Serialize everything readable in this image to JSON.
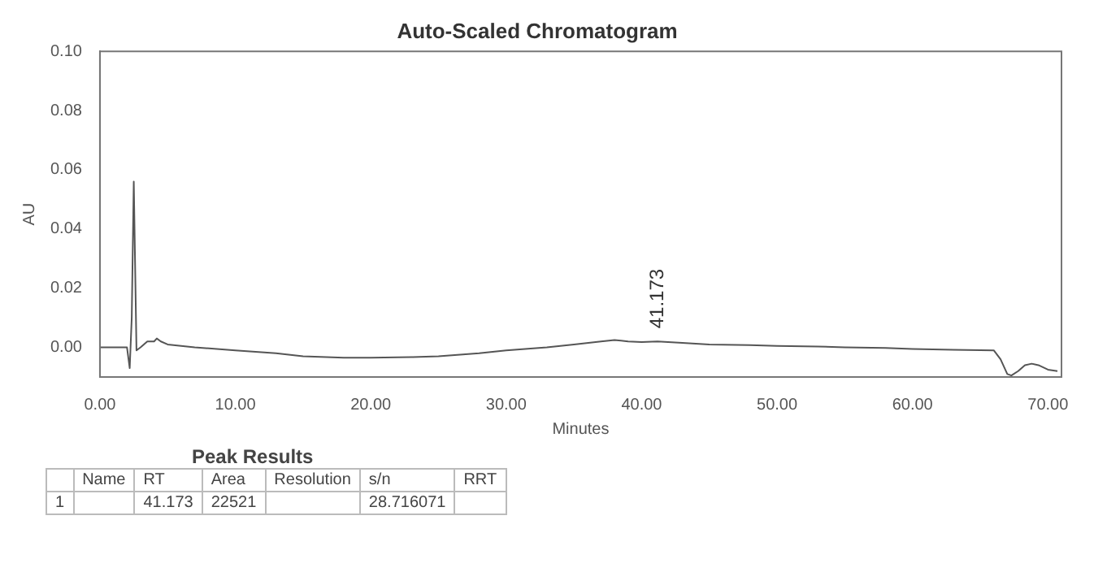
{
  "chart_data": {
    "type": "line",
    "title": "Auto-Scaled Chromatogram",
    "xlabel": "Minutes",
    "ylabel": "AU",
    "series": [
      {
        "color": "#555555",
        "x": [
          0,
          1.5,
          2.0,
          2.2,
          2.35,
          2.5,
          2.7,
          3.0,
          3.5,
          4.0,
          4.2,
          4.5,
          5,
          7,
          10,
          13,
          15,
          18,
          20,
          23,
          25,
          28,
          30,
          33,
          35,
          37,
          38,
          39,
          40,
          41.173,
          43,
          45,
          48,
          50,
          53,
          55,
          58,
          60,
          63,
          66,
          66.5,
          67,
          67.3,
          67.8,
          68.3,
          68.8,
          69.3,
          70,
          70.7
        ],
        "values": [
          0,
          0,
          0,
          -0.007,
          0.01,
          0.056,
          -0.001,
          0,
          0.002,
          0.002,
          0.003,
          0.002,
          0.001,
          0,
          -0.001,
          -0.002,
          -0.003,
          -0.0035,
          -0.0035,
          -0.0033,
          -0.003,
          -0.002,
          -0.001,
          0,
          0.001,
          0.002,
          0.0025,
          0.002,
          0.0018,
          0.002,
          0.0015,
          0.001,
          0.0008,
          0.0005,
          0.0003,
          0,
          -0.0002,
          -0.0005,
          -0.0008,
          -0.001,
          -0.004,
          -0.009,
          -0.0095,
          -0.008,
          -0.006,
          -0.0055,
          -0.006,
          -0.0075,
          -0.008
        ]
      }
    ],
    "xlim": [
      0,
      71
    ],
    "ylim": [
      -0.01,
      0.1
    ],
    "xticks": [
      {
        "value": 0,
        "label": "0.00"
      },
      {
        "value": 10,
        "label": "10.00"
      },
      {
        "value": 20,
        "label": "20.00"
      },
      {
        "value": 30,
        "label": "30.00"
      },
      {
        "value": 40,
        "label": "40.00"
      },
      {
        "value": 50,
        "label": "50.00"
      },
      {
        "value": 60,
        "label": "60.00"
      },
      {
        "value": 70,
        "label": "70.00"
      }
    ],
    "yticks": [
      {
        "value": 0,
        "label": "0.00"
      },
      {
        "value": 0.02,
        "label": "0.02"
      },
      {
        "value": 0.04,
        "label": "0.04"
      },
      {
        "value": 0.06,
        "label": "0.06"
      },
      {
        "value": 0.08,
        "label": "0.08"
      },
      {
        "value": 0.1,
        "label": "0.10"
      }
    ],
    "grid": false,
    "legend": false,
    "marker": "none",
    "line_style": "solid",
    "annotations": [
      {
        "text": "41.173",
        "x": 41.173,
        "y": 0.002
      },
      "Peak Results",
      "Name",
      "RT",
      "Area",
      "Resolution",
      "s/n",
      "RRT",
      "1",
      "41.173",
      "22521",
      "28.716071"
    ]
  }
}
